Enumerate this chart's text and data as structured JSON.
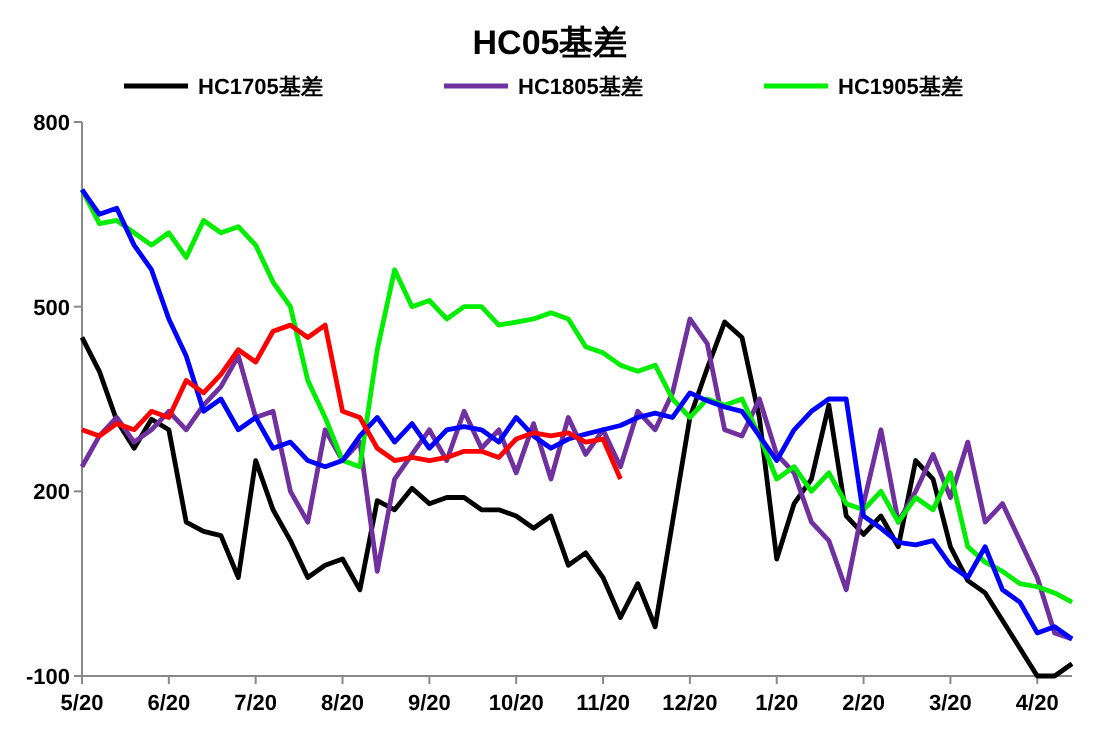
{
  "chart_data": {
    "type": "line",
    "title": "HC05基差",
    "legend": "top",
    "grid": false,
    "marker": "none",
    "line_style": "solid",
    "categories": [
      "5/20",
      null,
      null,
      null,
      null,
      "6/20",
      null,
      null,
      null,
      null,
      "7/20",
      null,
      null,
      null,
      null,
      "8/20",
      null,
      null,
      null,
      null,
      "9/20",
      null,
      null,
      null,
      null,
      "10/20",
      null,
      null,
      null,
      null,
      "11/20",
      null,
      null,
      null,
      null,
      "12/20",
      null,
      null,
      null,
      null,
      "1/20",
      null,
      null,
      null,
      null,
      "2/20",
      null,
      null,
      null,
      null,
      "3/20",
      null,
      null,
      null,
      null,
      "4/20",
      null,
      null
    ],
    "ylim": [
      -100,
      800
    ],
    "yticks": [
      -100,
      200,
      500,
      800
    ],
    "series": [
      {
        "name": "HC1705基差",
        "color": "#000000",
        "values": [
          450,
          395,
          315,
          270,
          317,
          300,
          150,
          135,
          128,
          60,
          250,
          170,
          120,
          60,
          80,
          90,
          40,
          185,
          170,
          205,
          180,
          190,
          190,
          170,
          170,
          160,
          140,
          160,
          80,
          100,
          60,
          -5,
          50,
          -20,
          150,
          320,
          400,
          475,
          450,
          320,
          90,
          180,
          220,
          340,
          160,
          130,
          160,
          110,
          250,
          220,
          110,
          55,
          35,
          -10,
          -55,
          -100,
          -100,
          -80
        ]
      },
      {
        "name": "HC1805基差",
        "color": "#7030a0",
        "values": [
          240,
          290,
          320,
          280,
          300,
          330,
          300,
          340,
          370,
          420,
          320,
          330,
          200,
          150,
          300,
          250,
          280,
          70,
          220,
          260,
          300,
          250,
          330,
          270,
          300,
          230,
          310,
          220,
          320,
          260,
          300,
          240,
          330,
          300,
          360,
          480,
          440,
          300,
          290,
          350,
          260,
          230,
          150,
          120,
          40,
          180,
          300,
          150,
          200,
          260,
          190,
          280,
          150,
          180,
          120,
          60,
          -30,
          -40
        ]
      },
      {
        "name": "HC1905基差",
        "color": "#00ee00",
        "values": [
          690,
          635,
          640,
          620,
          600,
          620,
          580,
          640,
          620,
          630,
          600,
          540,
          500,
          380,
          320,
          250,
          240,
          430,
          560,
          500,
          510,
          480,
          500,
          500,
          470,
          475,
          480,
          490,
          480,
          435,
          425,
          405,
          395,
          405,
          350,
          320,
          350,
          340,
          350,
          290,
          220,
          240,
          200,
          230,
          180,
          170,
          200,
          150,
          190,
          170,
          230,
          110,
          85,
          70,
          50,
          45,
          35,
          20
        ]
      },
      {
        "color": "#0000ff",
        "values": [
          690,
          650,
          660,
          600,
          560,
          480,
          420,
          330,
          350,
          300,
          320,
          270,
          280,
          250,
          240,
          250,
          290,
          320,
          280,
          310,
          270,
          300,
          305,
          300,
          280,
          320,
          290,
          270,
          285,
          293,
          300,
          307,
          320,
          327,
          320,
          360,
          347,
          337,
          330,
          290,
          250,
          300,
          330,
          350,
          350,
          160,
          140,
          117,
          113,
          120,
          80,
          60,
          110,
          40,
          20,
          -30,
          -20,
          -40
        ]
      },
      {
        "color": "#ff0000",
        "values": [
          300,
          290,
          310,
          300,
          330,
          320,
          380,
          360,
          390,
          430,
          410,
          460,
          470,
          450,
          470,
          330,
          320,
          270,
          250,
          255,
          250,
          255,
          265,
          265,
          255,
          285,
          295,
          290,
          295,
          280,
          285,
          220,
          null,
          null,
          null,
          null,
          null,
          null,
          null,
          null,
          null,
          null,
          null,
          null,
          null,
          null,
          null,
          null,
          null,
          null,
          null,
          null,
          null,
          null,
          null,
          null,
          null,
          null
        ]
      }
    ]
  }
}
